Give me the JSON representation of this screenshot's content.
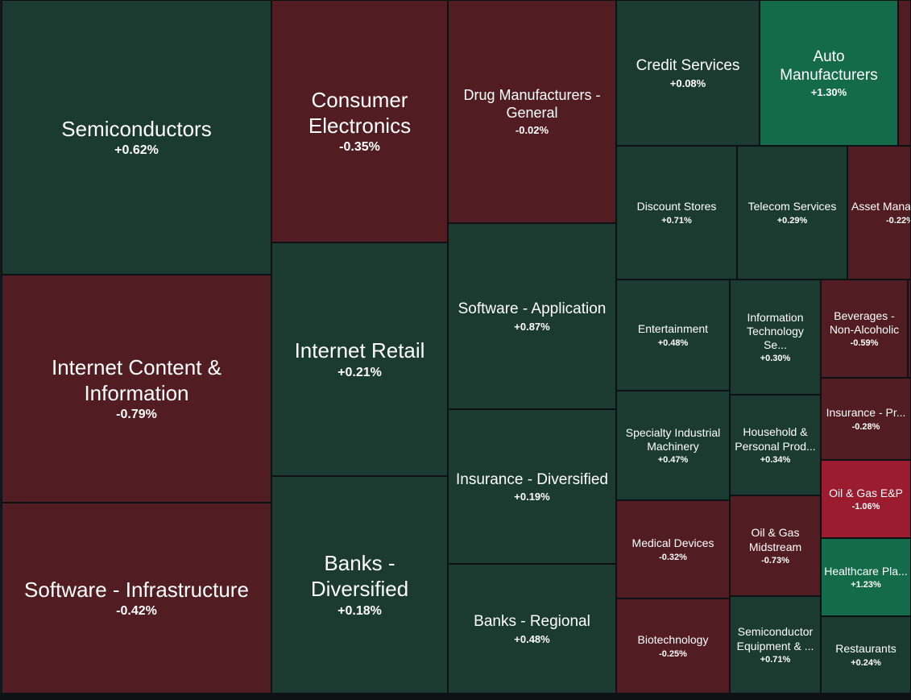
{
  "colors": {
    "dark_green": "#1b3a30",
    "mid_green": "#146b4c",
    "dark_red": "#521c23",
    "bright_red": "#9a1c2e"
  },
  "tiles": [
    {
      "name": "Semiconductors",
      "change": "+0.62%",
      "color": "#1b3a30"
    },
    {
      "name": "Internet Content & Information",
      "change": "-0.79%",
      "color": "#521c23"
    },
    {
      "name": "Software - Infrastructure",
      "change": "-0.42%",
      "color": "#521c23"
    },
    {
      "name": "Consumer Electronics",
      "change": "-0.35%",
      "color": "#521c23"
    },
    {
      "name": "Internet Retail",
      "change": "+0.21%",
      "color": "#1b3a30"
    },
    {
      "name": "Banks - Diversified",
      "change": "+0.18%",
      "color": "#1b3a30"
    },
    {
      "name": "Drug Manufacturers - General",
      "change": "-0.02%",
      "color": "#521c23"
    },
    {
      "name": "Software - Application",
      "change": "+0.87%",
      "color": "#1b3a30"
    },
    {
      "name": "Insurance - Diversified",
      "change": "+0.19%",
      "color": "#1b3a30"
    },
    {
      "name": "Banks - Regional",
      "change": "+0.48%",
      "color": "#1b3a30"
    },
    {
      "name": "Credit Services",
      "change": "+0.08%",
      "color": "#1b3a30"
    },
    {
      "name": "Auto Manufacturers",
      "change": "+1.30%",
      "color": "#146b4c"
    },
    {
      "name": "Discount Stores",
      "change": "+0.71%",
      "color": "#1b3a30"
    },
    {
      "name": "Telecom Services",
      "change": "+0.29%",
      "color": "#1b3a30"
    },
    {
      "name": "Asset Mana",
      "change": "-0.22%",
      "color": "#521c23"
    },
    {
      "name": "Entertainment",
      "change": "+0.48%",
      "color": "#1b3a30"
    },
    {
      "name": "Information Technology Se...",
      "change": "+0.30%",
      "color": "#1b3a30"
    },
    {
      "name": "Beverages - Non-Alcoholic",
      "change": "-0.59%",
      "color": "#521c23"
    },
    {
      "name": "Specialty Industrial Machinery",
      "change": "+0.47%",
      "color": "#1b3a30"
    },
    {
      "name": "Household & Personal Prod...",
      "change": "+0.34%",
      "color": "#1b3a30"
    },
    {
      "name": "Insurance - Pr...",
      "change": "-0.28%",
      "color": "#521c23"
    },
    {
      "name": "Oil & Gas E&P",
      "change": "-1.06%",
      "color": "#9a1c2e"
    },
    {
      "name": "Medical Devices",
      "change": "-0.32%",
      "color": "#521c23"
    },
    {
      "name": "Oil & Gas Midstream",
      "change": "-0.73%",
      "color": "#521c23"
    },
    {
      "name": "Healthcare Pla...",
      "change": "+1.23%",
      "color": "#146b4c"
    },
    {
      "name": "Biotechnology",
      "change": "-0.25%",
      "color": "#521c23"
    },
    {
      "name": "Semiconductor Equipment & ...",
      "change": "+0.71%",
      "color": "#1b3a30"
    },
    {
      "name": "Restaurants",
      "change": "+0.24%",
      "color": "#1b3a30"
    }
  ],
  "edge_slivers": [
    {
      "color": "#521c23"
    },
    {
      "color": "#521c23"
    }
  ]
}
